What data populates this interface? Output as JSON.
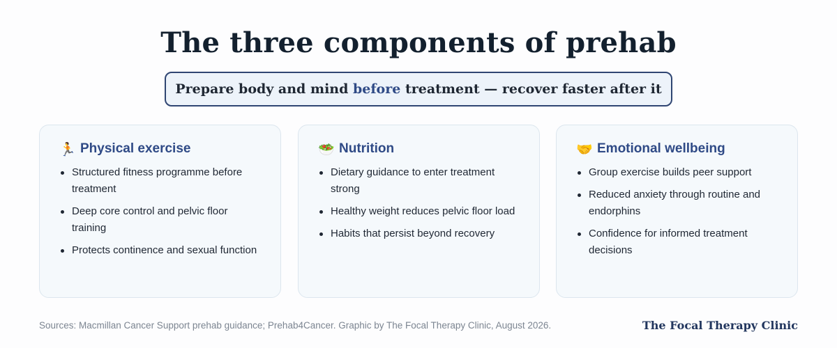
{
  "title": "The three components of prehab",
  "tagline": {
    "before": "Prepare body and mind ",
    "highlight": "before",
    "after": " treatment — recover faster after it"
  },
  "cards": [
    {
      "icon": "running-person-icon",
      "glyph": "🏃",
      "title": "Physical exercise",
      "bullets": [
        "Structured fitness programme before treatment",
        "Deep core control and pelvic floor training",
        "Protects continence and sexual function"
      ]
    },
    {
      "icon": "salad-bowl-icon",
      "glyph": "🥗",
      "title": "Nutrition",
      "bullets": [
        "Dietary guidance to enter treatment strong",
        "Healthy weight reduces pelvic floor load",
        "Habits that persist beyond recovery"
      ]
    },
    {
      "icon": "handshake-icon",
      "glyph": "🤝",
      "title": "Emotional wellbeing",
      "bullets": [
        "Group exercise builds peer support",
        "Reduced anxiety through routine and endorphins",
        "Confidence for informed treatment decisions"
      ]
    }
  ],
  "footer": {
    "sources": "Sources: Macmillan Cancer Support prehab guidance; Prehab4Cancer. Graphic by The Focal Therapy Clinic, August 2026.",
    "brand": "The Focal Therapy Clinic"
  },
  "colors": {
    "accent": "#2f4a86",
    "title": "#13202e",
    "card_bg": "#f5f9fc",
    "tagline_border": "#2f4572"
  }
}
